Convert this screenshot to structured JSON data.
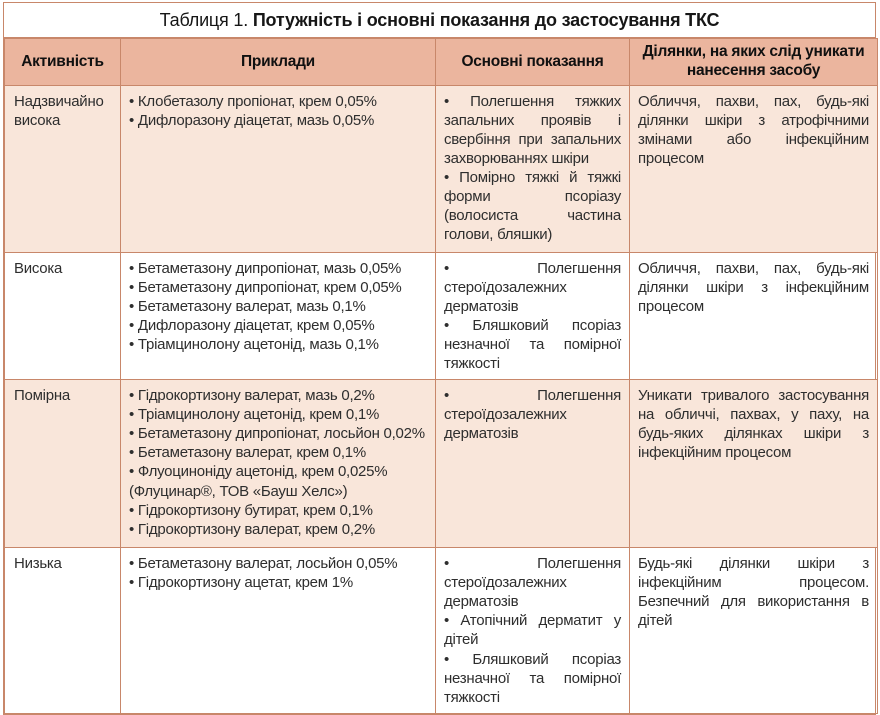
{
  "colors": {
    "border": "#c8876a",
    "header_bg": "#ebb59e",
    "row_alt_bg": "#f9e6da",
    "text": "#2e2e2e"
  },
  "title": {
    "prefix": "Таблиця 1.",
    "main": "Потужність і основні показання до застосування ТКС"
  },
  "table": {
    "headers": [
      "Активність",
      "Приклади",
      "Основні показання",
      "Ділянки, на яких слід уникати нанесення засобу"
    ],
    "rows": [
      {
        "activity": "Надзвичайно висока",
        "examples": [
          "Клобетазолу пропіонат, крем 0,05%",
          "Дифлоразону діацетат, мазь 0,05%"
        ],
        "indications": [
          "Полегшення тяжких запальних проявів і свербіння при запальних захворюваннях шкіри",
          "Помірно тяжкі й тяжкі форми псоріазу (волосиста частина голови, бляшки)"
        ],
        "avoid": "Обличчя, пахви, пах, будь-які ділянки шкіри з атрофічними змінами або інфекційним процесом"
      },
      {
        "activity": "Висока",
        "examples": [
          "Бетаметазону дипропіонат, мазь 0,05%",
          "Бетаметазону дипропіонат, крем 0,05%",
          "Бетаметазону валерат, мазь 0,1%",
          "Дифлоразону діацетат, крем 0,05%",
          "Тріамцинолону ацетонід, мазь 0,1%"
        ],
        "indications": [
          "Полегшення стероїдозалежних дерматозів",
          "Бляшковий псоріаз незначної та помірної тяжкості"
        ],
        "avoid": "Обличчя, пахви, пах, будь-які ділянки шкіри з інфекційним процесом"
      },
      {
        "activity": "Помірна",
        "examples": [
          "Гідрокортизону валерат, мазь 0,2%",
          "Тріамцинолону ацетонід, крем 0,1%",
          "Бетаметазону дипропіонат, лосьйон 0,02%",
          "Бетаметазону валерат, крем 0,1%",
          "Флуоциноніду ацетонід, крем 0,025% (Флуцинар®, ТОВ «Бауш Хелс»)",
          "Гідрокортизону бутират, крем 0,1%",
          "Гідрокортизону валерат, крем 0,2%"
        ],
        "indications": [
          "Полегшення стероїдозалежних дерматозів"
        ],
        "avoid": "Уникати тривалого застосування на обличчі, пахвах, у паху, на будь-яких ділянках шкіри з інфекційним процесом"
      },
      {
        "activity": "Низька",
        "examples": [
          "Бетаметазону валерат, лосьйон 0,05%",
          "Гідрокортизону ацетат, крем 1%"
        ],
        "indications": [
          "Полегшення стероїдозалежних дерматозів",
          "Атопічний дерматит у дітей",
          "Бляшковий псоріаз незначної та помірної тяжкості"
        ],
        "avoid": "Будь-які ділянки шкіри з інфекційним процесом. Безпечний для використання в дітей"
      }
    ]
  }
}
